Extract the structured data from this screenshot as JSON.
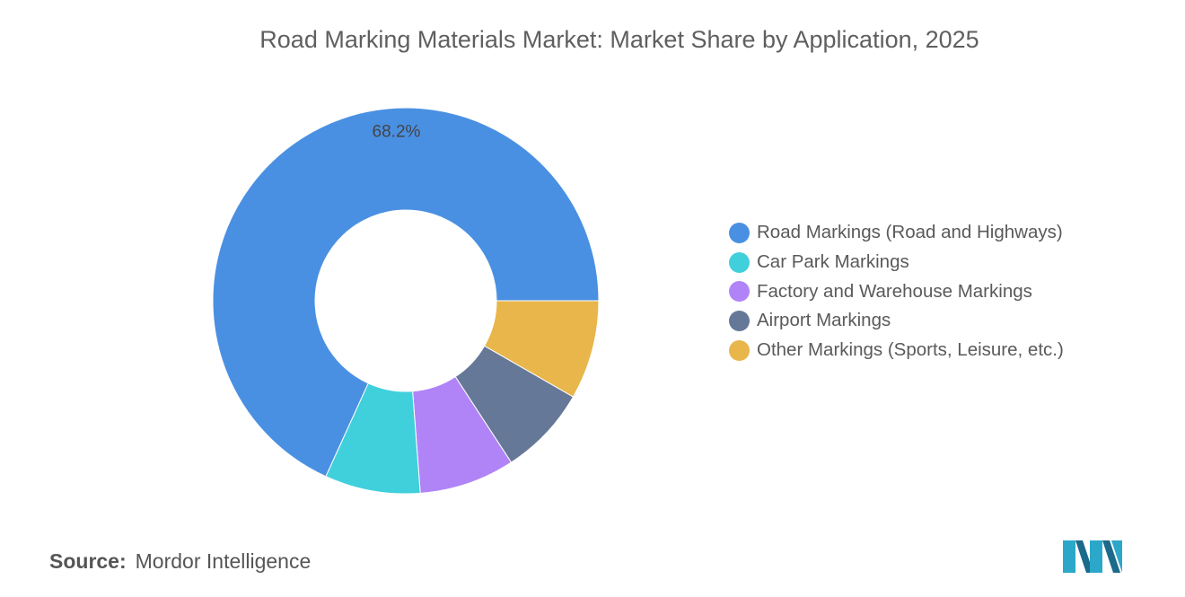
{
  "title": "Road Marking Materials Market: Market Share by Application, 2025",
  "source": {
    "label": "Source:",
    "value": "Mordor Intelligence"
  },
  "logo": {
    "name": "mordor-intelligence-logo",
    "colors": [
      "#2ba8c9",
      "#1b6a8c"
    ]
  },
  "chart_data": {
    "type": "pie",
    "variant": "donut",
    "title": "Road Marking Materials Market: Market Share by Application, 2025",
    "legend_position": "right",
    "slices": [
      {
        "name": "Road Markings (Road and Highways)",
        "value": 68.2,
        "label": "68.2%",
        "color": "#4a90e2"
      },
      {
        "name": "Car Park Markings",
        "value": 8.0,
        "label": "",
        "color": "#40d0dc"
      },
      {
        "name": "Factory and Warehouse Markings",
        "value": 8.0,
        "label": "",
        "color": "#b084f7"
      },
      {
        "name": "Airport Markings",
        "value": 7.5,
        "label": "",
        "color": "#667898"
      },
      {
        "name": "Other Markings (Sports, Leisure, etc.)",
        "value": 8.3,
        "label": "",
        "color": "#e8b64a"
      }
    ]
  }
}
